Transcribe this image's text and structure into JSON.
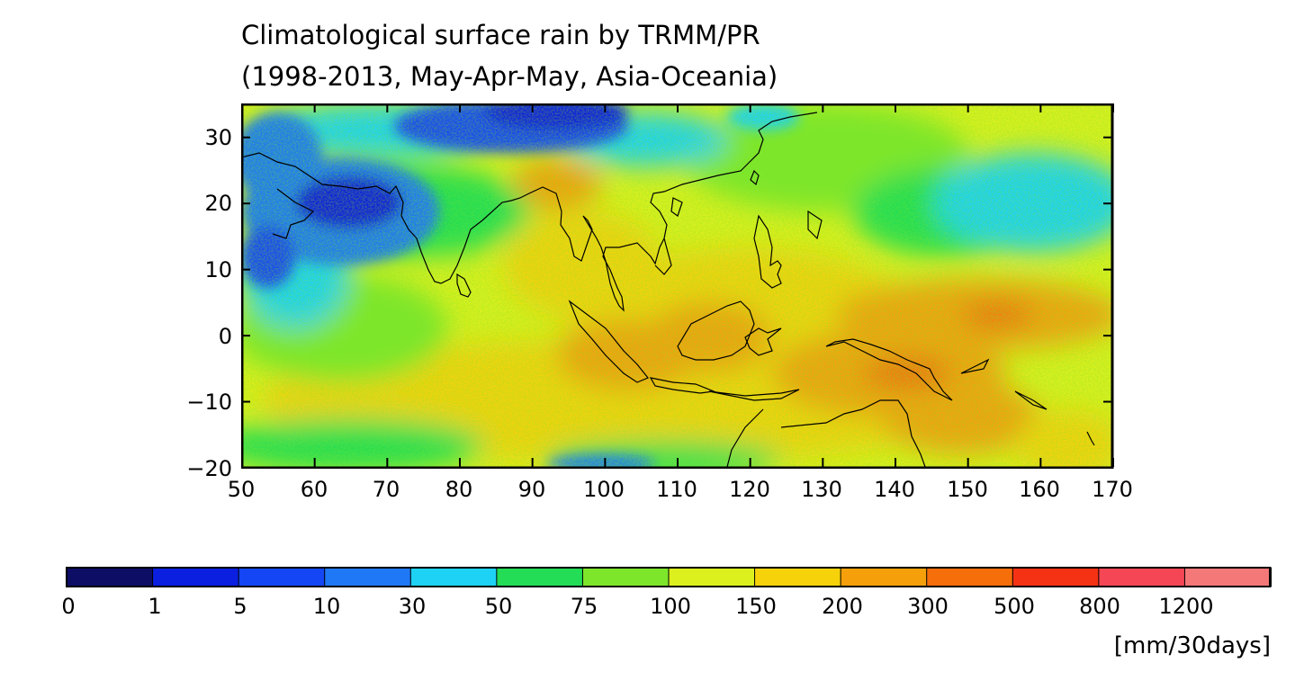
{
  "title_line1": "Climatological surface rain by TRMM/PR",
  "title_line2": "(1998-2013, May-Apr-May, Asia-Oceania)",
  "y_axis": {
    "ticks": [
      "30",
      "20",
      "10",
      "0",
      "−10",
      "−20"
    ],
    "values": [
      30,
      20,
      10,
      0,
      -10,
      -20
    ],
    "range": [
      -20,
      35
    ]
  },
  "x_axis": {
    "ticks": [
      "50",
      "60",
      "70",
      "80",
      "90",
      "100",
      "110",
      "120",
      "130",
      "140",
      "150",
      "160",
      "170"
    ],
    "values": [
      50,
      60,
      70,
      80,
      90,
      100,
      110,
      120,
      130,
      140,
      150,
      160,
      170
    ],
    "range": [
      50,
      170
    ]
  },
  "colorbar": {
    "labels": [
      "0",
      "1",
      "5",
      "10",
      "30",
      "50",
      "75",
      "100",
      "150",
      "200",
      "300",
      "500",
      "800",
      "1200"
    ],
    "colors": [
      "#0d0d66",
      "#0a1fe0",
      "#1446f5",
      "#1f78f5",
      "#1ed2f5",
      "#22dd55",
      "#7ee62a",
      "#dcf01e",
      "#f5d20a",
      "#f5a00a",
      "#f56e0a",
      "#f53214",
      "#f54655",
      "#f57878"
    ],
    "units": "[mm/30days]"
  }
}
